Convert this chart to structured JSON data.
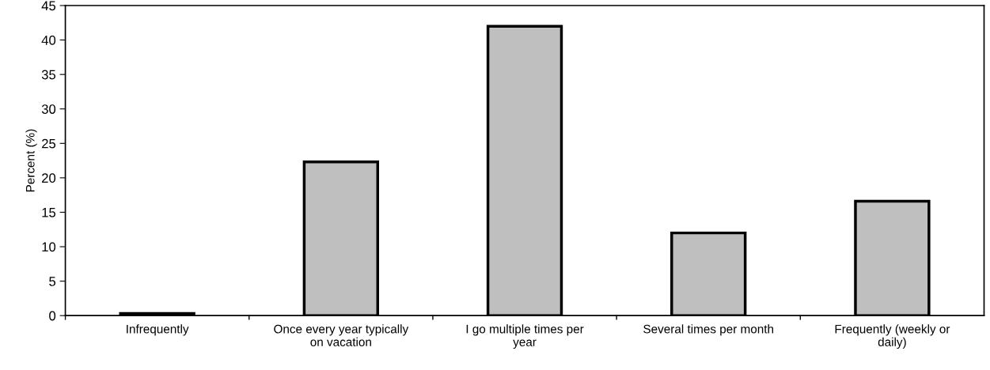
{
  "chart_data": {
    "type": "bar",
    "ylabel": "Percent (%)",
    "categories": [
      "Infrequently",
      "Once every year typically\non vacation",
      "I go multiple times per\nyear",
      "Several times per month",
      "Frequently (weekly or\ndaily)"
    ],
    "values": [
      0.3,
      22.3,
      42.0,
      12.0,
      16.6
    ],
    "color": "#bfbfbf",
    "ylim": [
      0,
      45
    ],
    "yticks": [
      0,
      5,
      10,
      15,
      20,
      25,
      30,
      35,
      40,
      45
    ],
    "grid": false
  }
}
